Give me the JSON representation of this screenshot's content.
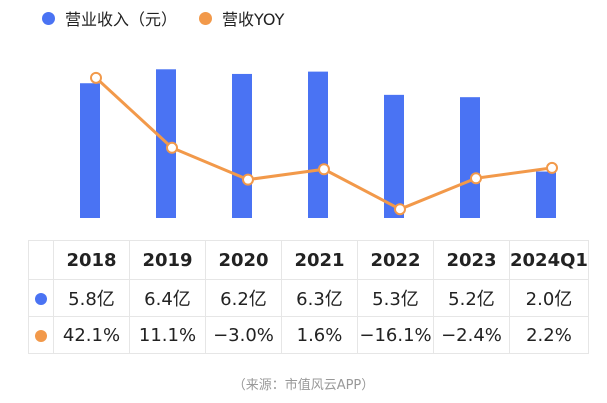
{
  "colors": {
    "revenue": "#4a73f3",
    "yoy": "#f2994a",
    "grid": "#e6e6e6"
  },
  "legend": {
    "revenue": "营业收入（元）",
    "yoy": "营收YOY"
  },
  "chart_data": {
    "type": "bar",
    "categories": [
      "2018",
      "2019",
      "2020",
      "2021",
      "2022",
      "2023",
      "2024Q1"
    ],
    "series": [
      {
        "name": "营业收入（元）",
        "type": "bar",
        "values": [
          5.8,
          6.4,
          6.2,
          6.3,
          5.3,
          5.2,
          2.0
        ],
        "labels": [
          "5.8亿",
          "6.4亿",
          "6.2亿",
          "6.3亿",
          "5.3亿",
          "5.2亿",
          "2.0亿"
        ]
      },
      {
        "name": "营收YOY",
        "type": "line",
        "values": [
          42.1,
          11.1,
          -3.0,
          1.6,
          -16.1,
          -2.4,
          2.2
        ],
        "labels": [
          "42.1%",
          "11.1%",
          "−3.0%",
          "1.6%",
          "−16.1%",
          "−2.4%",
          "2.2%"
        ]
      }
    ],
    "ylim_bar": [
      0,
      6.8
    ],
    "ylim_line": [
      -20,
      50
    ],
    "legend_position": "top-left",
    "grid": false
  },
  "source": "（来源：市值风云APP）"
}
